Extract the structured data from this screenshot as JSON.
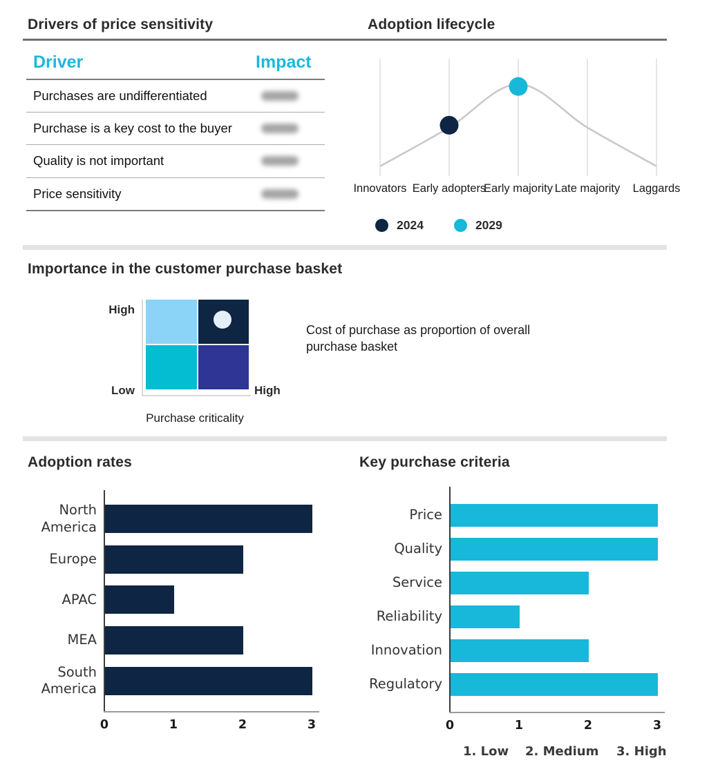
{
  "colors": {
    "navy": "#0e2543",
    "cyan": "#17b8d9",
    "table_header_cyan": "#1cb8dc",
    "quad_light_blue": "#8bd3f7",
    "quad_navy": "#0e2543",
    "quad_teal": "#04bdd3",
    "quad_indigo": "#2e3595",
    "quad_marker_light": "#e4effa",
    "curve_gray": "#c9c9c9",
    "grid_gray": "#dfdfdf",
    "divider_gray": "#e3e3e3"
  },
  "sections": {
    "drivers": {
      "title": "Drivers of price sensitivity",
      "columns": {
        "driver": "Driver",
        "impact": "Impact"
      },
      "impact_values_blurred": true,
      "rows": [
        "Purchases are undifferentiated",
        "Purchase is a key cost to the buyer",
        "Quality is not important",
        "Price sensitivity"
      ]
    },
    "lifecycle": {
      "title": "Adoption lifecycle",
      "categories": [
        "Innovators",
        "Early adopters",
        "Early majority",
        "Late majority",
        "Laggards"
      ],
      "legend": [
        {
          "label": "2024",
          "color": "#0e2543"
        },
        {
          "label": "2029",
          "color": "#17b8d9"
        }
      ]
    },
    "basket": {
      "title": "Importance in the customer purchase basket",
      "y_high": "High",
      "y_low": "Low",
      "x_high": "High",
      "xlabel": "Purchase criticality",
      "note": "Cost of purchase as proportion of overall purchase basket"
    },
    "adoption": {
      "title": "Adoption rates"
    },
    "criteria": {
      "title": "Key purchase criteria",
      "footnote": [
        "1. Low",
        "2. Medium",
        "3. High"
      ]
    }
  },
  "chart_data": [
    {
      "type": "line",
      "title": "Adoption lifecycle",
      "x": [
        "Innovators",
        "Early adopters",
        "Early majority",
        "Late majority",
        "Laggards"
      ],
      "curve_heights": [
        0.08,
        0.42,
        0.8,
        0.42,
        0.08
      ],
      "curve_color": "#c9c9c9",
      "grid": "vertical",
      "legend_position": "bottom",
      "series": [
        {
          "name": "2024",
          "category": "Early adopters",
          "height": 0.44,
          "color": "#0e2543"
        },
        {
          "name": "2029",
          "category": "Early majority",
          "height": 0.78,
          "color": "#17b8d9"
        }
      ]
    },
    {
      "type": "heatmap",
      "title": "Importance in the customer purchase basket",
      "xlabel": "Purchase criticality",
      "axis_labels": {
        "y_top": "High",
        "y_bottom": "Low",
        "x_right": "High"
      },
      "cells": [
        [
          "#8bd3f7",
          "#0e2543"
        ],
        [
          "#04bdd3",
          "#2e3595"
        ]
      ],
      "marker": {
        "row": 0,
        "col": 1,
        "color": "#e4effa"
      },
      "annotation": "Cost of purchase as proportion of overall purchase basket"
    },
    {
      "type": "bar",
      "title": "Adoption rates",
      "orientation": "horizontal",
      "categories": [
        "North America",
        "Europe",
        "APAC",
        "MEA",
        "South America"
      ],
      "values": [
        3,
        2,
        1,
        2,
        3
      ],
      "xlim": [
        0,
        3
      ],
      "xticks": [
        0,
        1,
        2,
        3
      ],
      "color": "#0e2543",
      "grid": "off"
    },
    {
      "type": "bar",
      "title": "Key purchase criteria",
      "orientation": "horizontal",
      "categories": [
        "Price",
        "Quality",
        "Service",
        "Reliability",
        "Innovation",
        "Regulatory"
      ],
      "values": [
        3,
        3,
        2,
        1,
        2,
        3
      ],
      "xlim": [
        0,
        3
      ],
      "xticks": [
        0,
        1,
        2,
        3
      ],
      "color": "#17b8d9",
      "grid": "off",
      "footnote": "1. Low   2. Medium   3. High"
    }
  ]
}
